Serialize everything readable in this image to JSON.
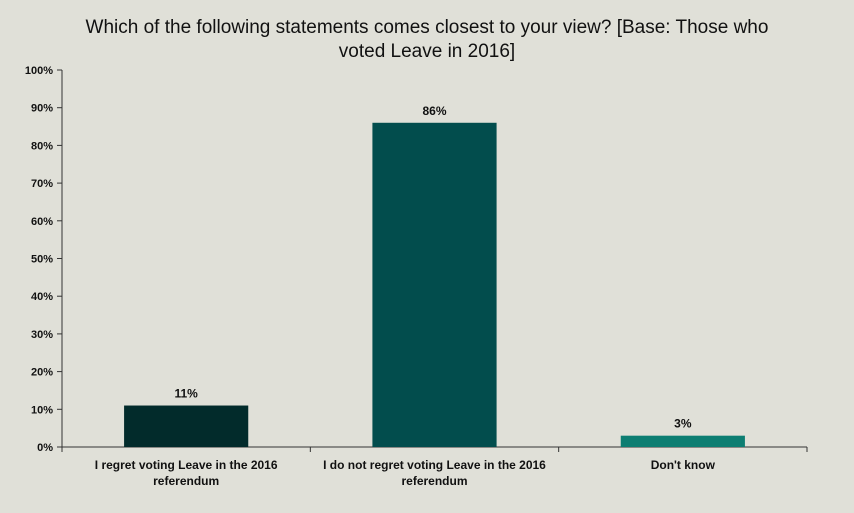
{
  "chart_data": {
    "type": "bar",
    "title": "Which of the following statements comes closest to your view? [Base: Those who voted Leave in 2016]",
    "categories": [
      "I regret voting Leave in the 2016 referendum",
      "I do not regret voting Leave in the 2016 referendum",
      "Don't know"
    ],
    "values": [
      11,
      86,
      3
    ],
    "data_labels": [
      "11%",
      "86%",
      "3%"
    ],
    "colors": [
      "#022b2b",
      "#024d4d",
      "#0d7e72"
    ],
    "ylim": [
      0,
      100
    ],
    "yticks": [
      0,
      10,
      20,
      30,
      40,
      50,
      60,
      70,
      80,
      90,
      100
    ],
    "ytick_labels": [
      "0%",
      "10%",
      "20%",
      "30%",
      "40%",
      "50%",
      "60%",
      "70%",
      "80%",
      "90%",
      "100%"
    ],
    "xlabel": "",
    "ylabel": "",
    "grid": false,
    "legend": "none"
  }
}
